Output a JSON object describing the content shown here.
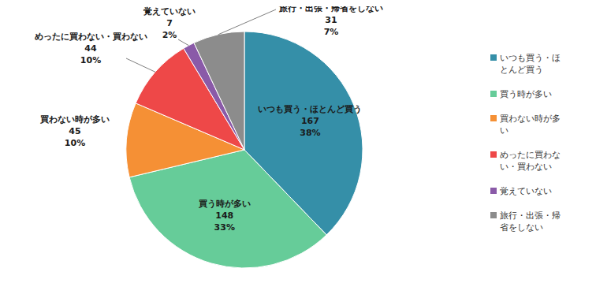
{
  "chart_data": {
    "type": "pie",
    "categories": [
      "いつも買う・ほとんど買う",
      "買う時が多い",
      "買わない時が多い",
      "めったに買わない・買わない",
      "覚えていない",
      "旅行・出張・帰省をしない"
    ],
    "values": [
      167,
      148,
      45,
      44,
      7,
      31
    ],
    "percent_labels": [
      "38%",
      "33%",
      "10%",
      "10%",
      "2%",
      "7%"
    ],
    "colors": [
      "#358fa8",
      "#66cc99",
      "#f59035",
      "#ee4848",
      "#8a5aa8",
      "#8c8c8c"
    ],
    "data_labels": true,
    "legend": "right"
  }
}
